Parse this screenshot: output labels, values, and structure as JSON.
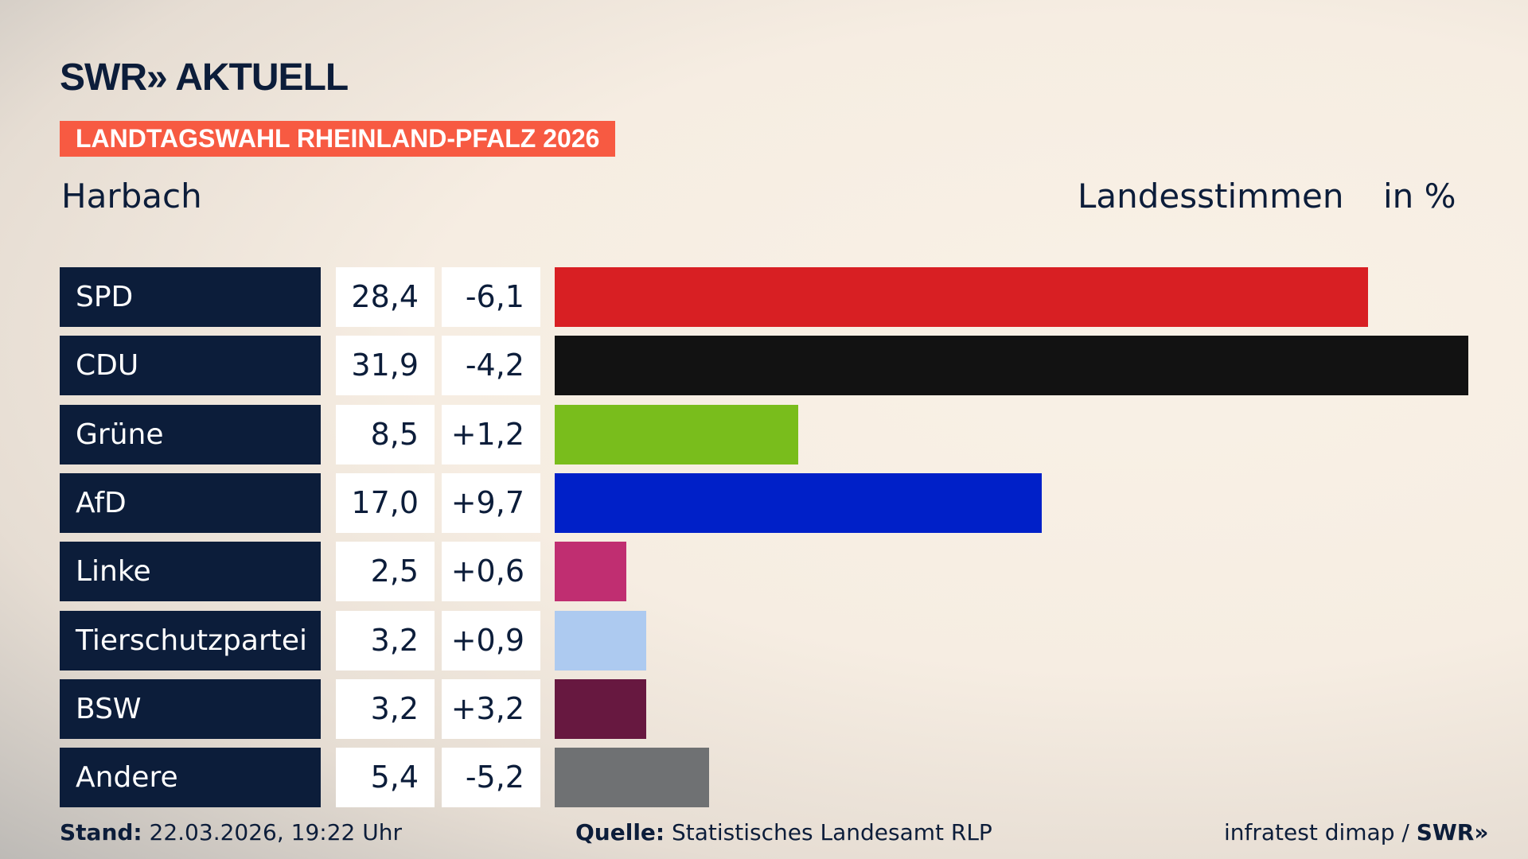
{
  "header": {
    "logo": "SWR» AKTUELL",
    "banner": "LANDTAGSWAHL RHEINLAND-PFALZ 2026",
    "district": "Harbach",
    "vote_type": "Landesstimmen",
    "unit": "in %"
  },
  "chart_data": {
    "type": "bar",
    "orientation": "horizontal",
    "categories": [
      "SPD",
      "CDU",
      "Grüne",
      "AfD",
      "Linke",
      "Tierschutzpartei",
      "BSW",
      "Andere"
    ],
    "values": [
      28.4,
      31.9,
      8.5,
      17.0,
      2.5,
      3.2,
      3.2,
      5.4
    ],
    "values_label": [
      "28,4",
      "31,9",
      "8,5",
      "17,0",
      "2,5",
      "3,2",
      "3,2",
      "5,4"
    ],
    "diff_label": [
      "-6,1",
      "-4,2",
      "+1,2",
      "+9,7",
      "+0,6",
      "+0,9",
      "+3,2",
      "-5,2"
    ],
    "colors": [
      "#d81f23",
      "#121212",
      "#79bd1c",
      "#0020c8",
      "#c02e71",
      "#adcaf0",
      "#671840",
      "#6f7173"
    ]
  },
  "footer": {
    "stand_label": "Stand:",
    "stand_value": "22.03.2026, 19:22 Uhr",
    "source_label": "Quelle:",
    "source_value": "Statistisches Landesamt RLP",
    "credit": "infratest dimap / ",
    "credit_logo": "SWR»"
  }
}
